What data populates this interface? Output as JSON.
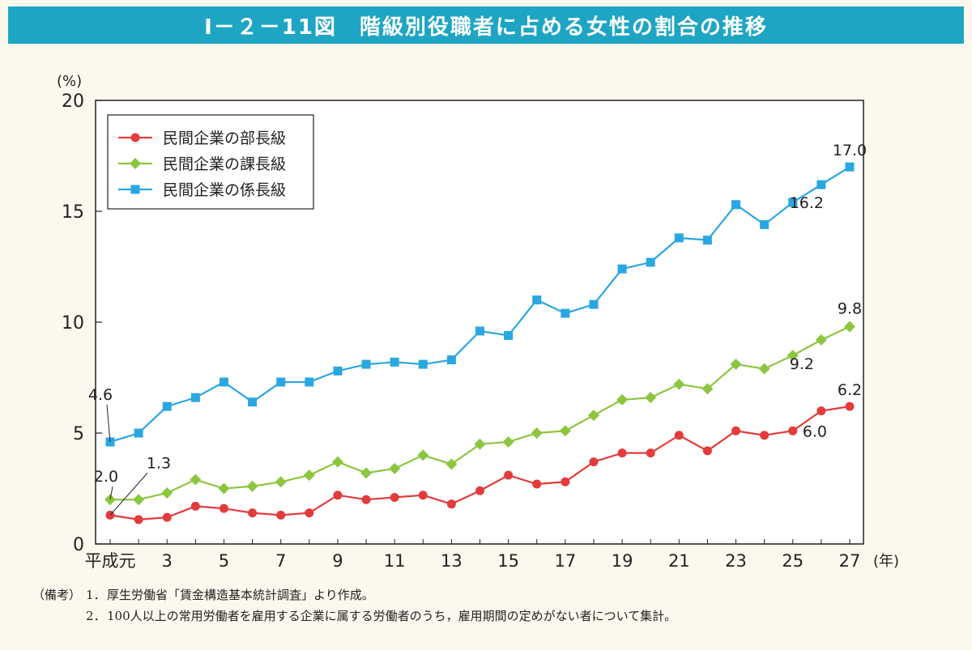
{
  "header": {
    "title": "Ⅰ－２－11図　階級別役職者に占める女性の割合の推移"
  },
  "colors": {
    "title_bar": "#1ea5c4",
    "bucho": "#e33b3b",
    "kacho": "#8cc63f",
    "kakaricho": "#2aa7e1"
  },
  "chart_data": {
    "type": "line",
    "ylabel": "(%)",
    "xlabel": "(年)",
    "ylim": [
      0,
      20
    ],
    "yticks": [
      0,
      5,
      10,
      15,
      20
    ],
    "x": [
      1,
      2,
      3,
      4,
      5,
      6,
      7,
      8,
      9,
      10,
      11,
      12,
      13,
      14,
      15,
      16,
      17,
      18,
      19,
      20,
      21,
      22,
      23,
      24,
      25,
      26,
      27
    ],
    "xtick_values": [
      1,
      3,
      5,
      7,
      9,
      11,
      13,
      15,
      17,
      19,
      21,
      23,
      25,
      27
    ],
    "xtick_labels": [
      "平成元",
      "3",
      "5",
      "7",
      "9",
      "11",
      "13",
      "15",
      "17",
      "19",
      "21",
      "23",
      "25",
      "27"
    ],
    "legend_position": "top-left",
    "grid": false,
    "series": [
      {
        "name": "民間企業の部長級",
        "marker": "circle",
        "color": "#e33b3b",
        "values": [
          1.3,
          1.1,
          1.2,
          1.7,
          1.6,
          1.4,
          1.3,
          1.4,
          2.2,
          2.0,
          2.1,
          2.2,
          1.8,
          2.4,
          3.1,
          2.7,
          2.8,
          3.7,
          4.1,
          4.1,
          4.9,
          4.2,
          5.1,
          4.9,
          5.1,
          6.0,
          6.2
        ]
      },
      {
        "name": "民間企業の課長級",
        "marker": "diamond",
        "color": "#8cc63f",
        "values": [
          2.0,
          2.0,
          2.3,
          2.9,
          2.5,
          2.6,
          2.8,
          3.1,
          3.7,
          3.2,
          3.4,
          4.0,
          3.6,
          4.5,
          4.6,
          5.0,
          5.1,
          5.8,
          6.5,
          6.6,
          7.2,
          7.0,
          8.1,
          7.9,
          8.5,
          9.2,
          9.8
        ]
      },
      {
        "name": "民間企業の係長級",
        "marker": "square",
        "color": "#2aa7e1",
        "values": [
          4.6,
          5.0,
          6.2,
          6.6,
          7.3,
          6.4,
          7.3,
          7.3,
          7.8,
          8.1,
          8.2,
          8.1,
          8.3,
          9.6,
          9.4,
          11.0,
          10.4,
          10.8,
          12.4,
          12.7,
          13.8,
          13.7,
          15.3,
          14.4,
          15.4,
          16.2,
          17.0
        ]
      }
    ],
    "annotations": [
      {
        "text": "4.6",
        "series": 2,
        "index": 0
      },
      {
        "text": "2.0",
        "series": 1,
        "index": 0
      },
      {
        "text": "1.3",
        "series": 0,
        "index": 0
      },
      {
        "text": "17.0",
        "series": 2,
        "index": 26
      },
      {
        "text": "16.2",
        "series": 2,
        "index": 25
      },
      {
        "text": "9.8",
        "series": 1,
        "index": 26
      },
      {
        "text": "9.2",
        "series": 1,
        "index": 25
      },
      {
        "text": "6.2",
        "series": 0,
        "index": 26
      },
      {
        "text": "6.0",
        "series": 0,
        "index": 25
      }
    ]
  },
  "notes": {
    "label": "（備考）",
    "items": [
      {
        "num": "1．",
        "text": "厚生労働省「賃金構造基本統計調査」より作成。"
      },
      {
        "num": "2．",
        "text": "100人以上の常用労働者を雇用する企業に属する労働者のうち，雇用期間の定めがない者について集計。"
      }
    ]
  }
}
